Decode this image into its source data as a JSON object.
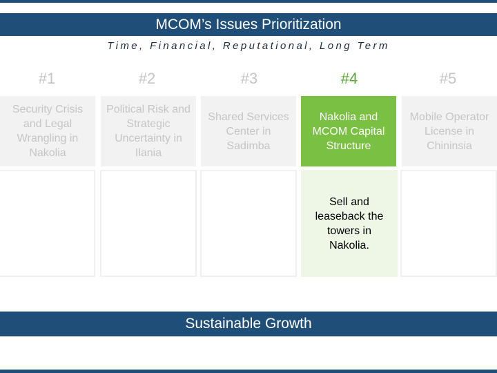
{
  "title": "MCOM’s Issues Prioritization",
  "subtitle": "Time, Financial, Reputational, Long Term",
  "colors": {
    "navy": "#1f4e79",
    "green": "#7ac143",
    "light_green": "#eef6e6",
    "inactive_text": "#c5c5c5"
  },
  "columns": [
    {
      "rank": "#1",
      "heading": "Security Crisis and Legal Wrangling in Nakolia",
      "detail": ""
    },
    {
      "rank": "#2",
      "heading": "Political Risk and Strategic Uncertainty in Ilania",
      "detail": ""
    },
    {
      "rank": "#3",
      "heading": "Shared Services Center in Sadimba",
      "detail": ""
    },
    {
      "rank": "#4",
      "heading": "Nakolia and MCOM Capital Structure",
      "detail": "Sell and leaseback the towers in Nakolia."
    },
    {
      "rank": "#5",
      "heading": "Mobile Operator License in Chininsia",
      "detail": ""
    }
  ],
  "footer": "Sustainable Growth"
}
